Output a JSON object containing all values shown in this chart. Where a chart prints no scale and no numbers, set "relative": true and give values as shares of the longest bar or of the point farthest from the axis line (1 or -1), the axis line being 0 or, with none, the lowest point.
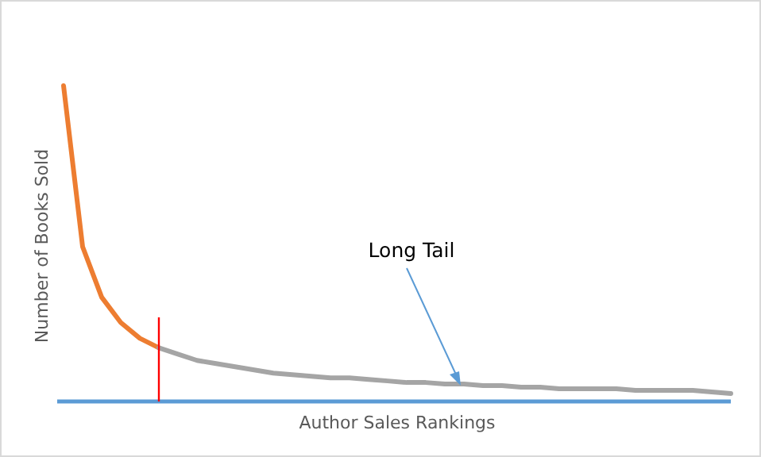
{
  "chart_data": {
    "type": "line",
    "relative": true,
    "xlabel": "Author Sales Rankings",
    "ylabel": "Number  of Books Sold",
    "categories": [
      null,
      null,
      null,
      null,
      null,
      null,
      null,
      null,
      null,
      null,
      null,
      null,
      null,
      null,
      null,
      null,
      null,
      null,
      null,
      null,
      null,
      null,
      null,
      null,
      null,
      null,
      null,
      null,
      null,
      null,
      null,
      null,
      null,
      null,
      null,
      null
    ],
    "series": [
      {
        "color": "#ed7d31",
        "values": [
          1,
          0.49,
          0.33,
          0.25,
          0.2,
          0.17,
          null,
          null,
          null,
          null,
          null,
          null,
          null,
          null,
          null,
          null,
          null,
          null,
          null,
          null,
          null,
          null,
          null,
          null,
          null,
          null,
          null,
          null,
          null,
          null,
          null,
          null,
          null,
          null,
          null,
          null
        ]
      },
      {
        "color": "#a5a5a5",
        "values": [
          null,
          null,
          null,
          null,
          null,
          0.17,
          0.15,
          0.13,
          0.12,
          0.11,
          0.1,
          0.09,
          0.085,
          0.08,
          0.075,
          0.075,
          0.07,
          0.065,
          0.06,
          0.06,
          0.055,
          0.055,
          0.05,
          0.05,
          0.045,
          0.045,
          0.04,
          0.04,
          0.04,
          0.04,
          0.035,
          0.035,
          0.035,
          0.035,
          0.03,
          0.025
        ]
      }
    ],
    "annotations": [
      {
        "text": "Long Tail"
      }
    ]
  }
}
